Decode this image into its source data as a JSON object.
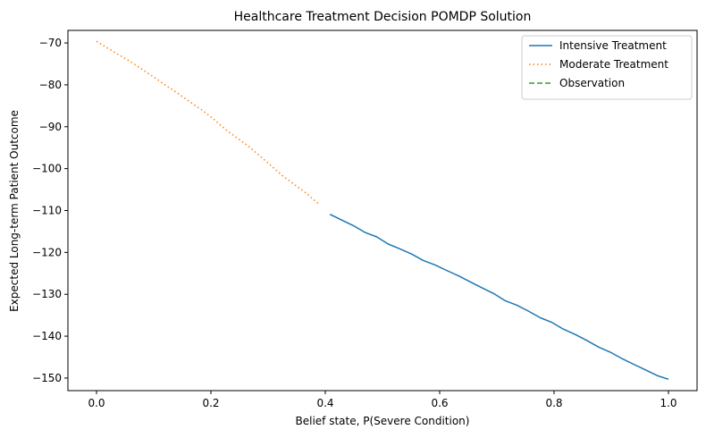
{
  "chart_data": {
    "type": "line",
    "title": "Healthcare Treatment Decision POMDP Solution",
    "xlabel": "Belief state, P(Severe Condition)",
    "ylabel": "Expected Long-term Patient Outcome",
    "xlim": [
      -0.05,
      1.05
    ],
    "ylim": [
      -153,
      -67
    ],
    "xticks": [
      0.0,
      0.2,
      0.4,
      0.6,
      0.8,
      1.0
    ],
    "xtick_labels": [
      "0.0",
      "0.2",
      "0.4",
      "0.6",
      "0.8",
      "1.0"
    ],
    "yticks": [
      -70,
      -80,
      -90,
      -100,
      -110,
      -120,
      -130,
      -140,
      -150
    ],
    "ytick_labels": [
      "−70",
      "−80",
      "−90",
      "−100",
      "−110",
      "−120",
      "−130",
      "−140",
      "−150"
    ],
    "grid": false,
    "legend_position": "top-right",
    "series": [
      {
        "name": "Intensive Treatment",
        "color": "#1f77b4",
        "style": "solid",
        "x": [
          0.408,
          0.429,
          0.449,
          0.469,
          0.49,
          0.51,
          0.531,
          0.551,
          0.571,
          0.592,
          0.612,
          0.633,
          0.653,
          0.673,
          0.694,
          0.714,
          0.735,
          0.755,
          0.776,
          0.796,
          0.816,
          0.837,
          0.857,
          0.878,
          0.898,
          0.918,
          0.939,
          0.959,
          0.98,
          1.0
        ],
        "y": [
          -110.9,
          -112.3,
          -113.6,
          -115.2,
          -116.3,
          -118.0,
          -119.2,
          -120.4,
          -121.9,
          -123.0,
          -124.3,
          -125.6,
          -127.0,
          -128.4,
          -129.8,
          -131.5,
          -132.6,
          -134.0,
          -135.6,
          -136.7,
          -138.3,
          -139.6,
          -141.0,
          -142.6,
          -143.8,
          -145.3,
          -146.7,
          -148.0,
          -149.4,
          -150.3
        ]
      },
      {
        "name": "Moderate Treatment",
        "color": "#ff7f0e",
        "style": "dotted",
        "x": [
          0.0,
          0.02,
          0.041,
          0.061,
          0.082,
          0.102,
          0.122,
          0.143,
          0.163,
          0.184,
          0.204,
          0.224,
          0.245,
          0.265,
          0.286,
          0.306,
          0.327,
          0.347,
          0.367,
          0.388
        ],
        "y": [
          -69.6,
          -71.3,
          -73.0,
          -74.6,
          -76.5,
          -78.3,
          -80.2,
          -82.1,
          -84.0,
          -86.0,
          -88.1,
          -90.5,
          -92.6,
          -94.6,
          -97.0,
          -99.4,
          -101.9,
          -103.9,
          -105.9,
          -108.4
        ]
      },
      {
        "name": "Observation",
        "color": "#2ca02c",
        "style": "dashed",
        "x": [],
        "y": []
      }
    ]
  }
}
